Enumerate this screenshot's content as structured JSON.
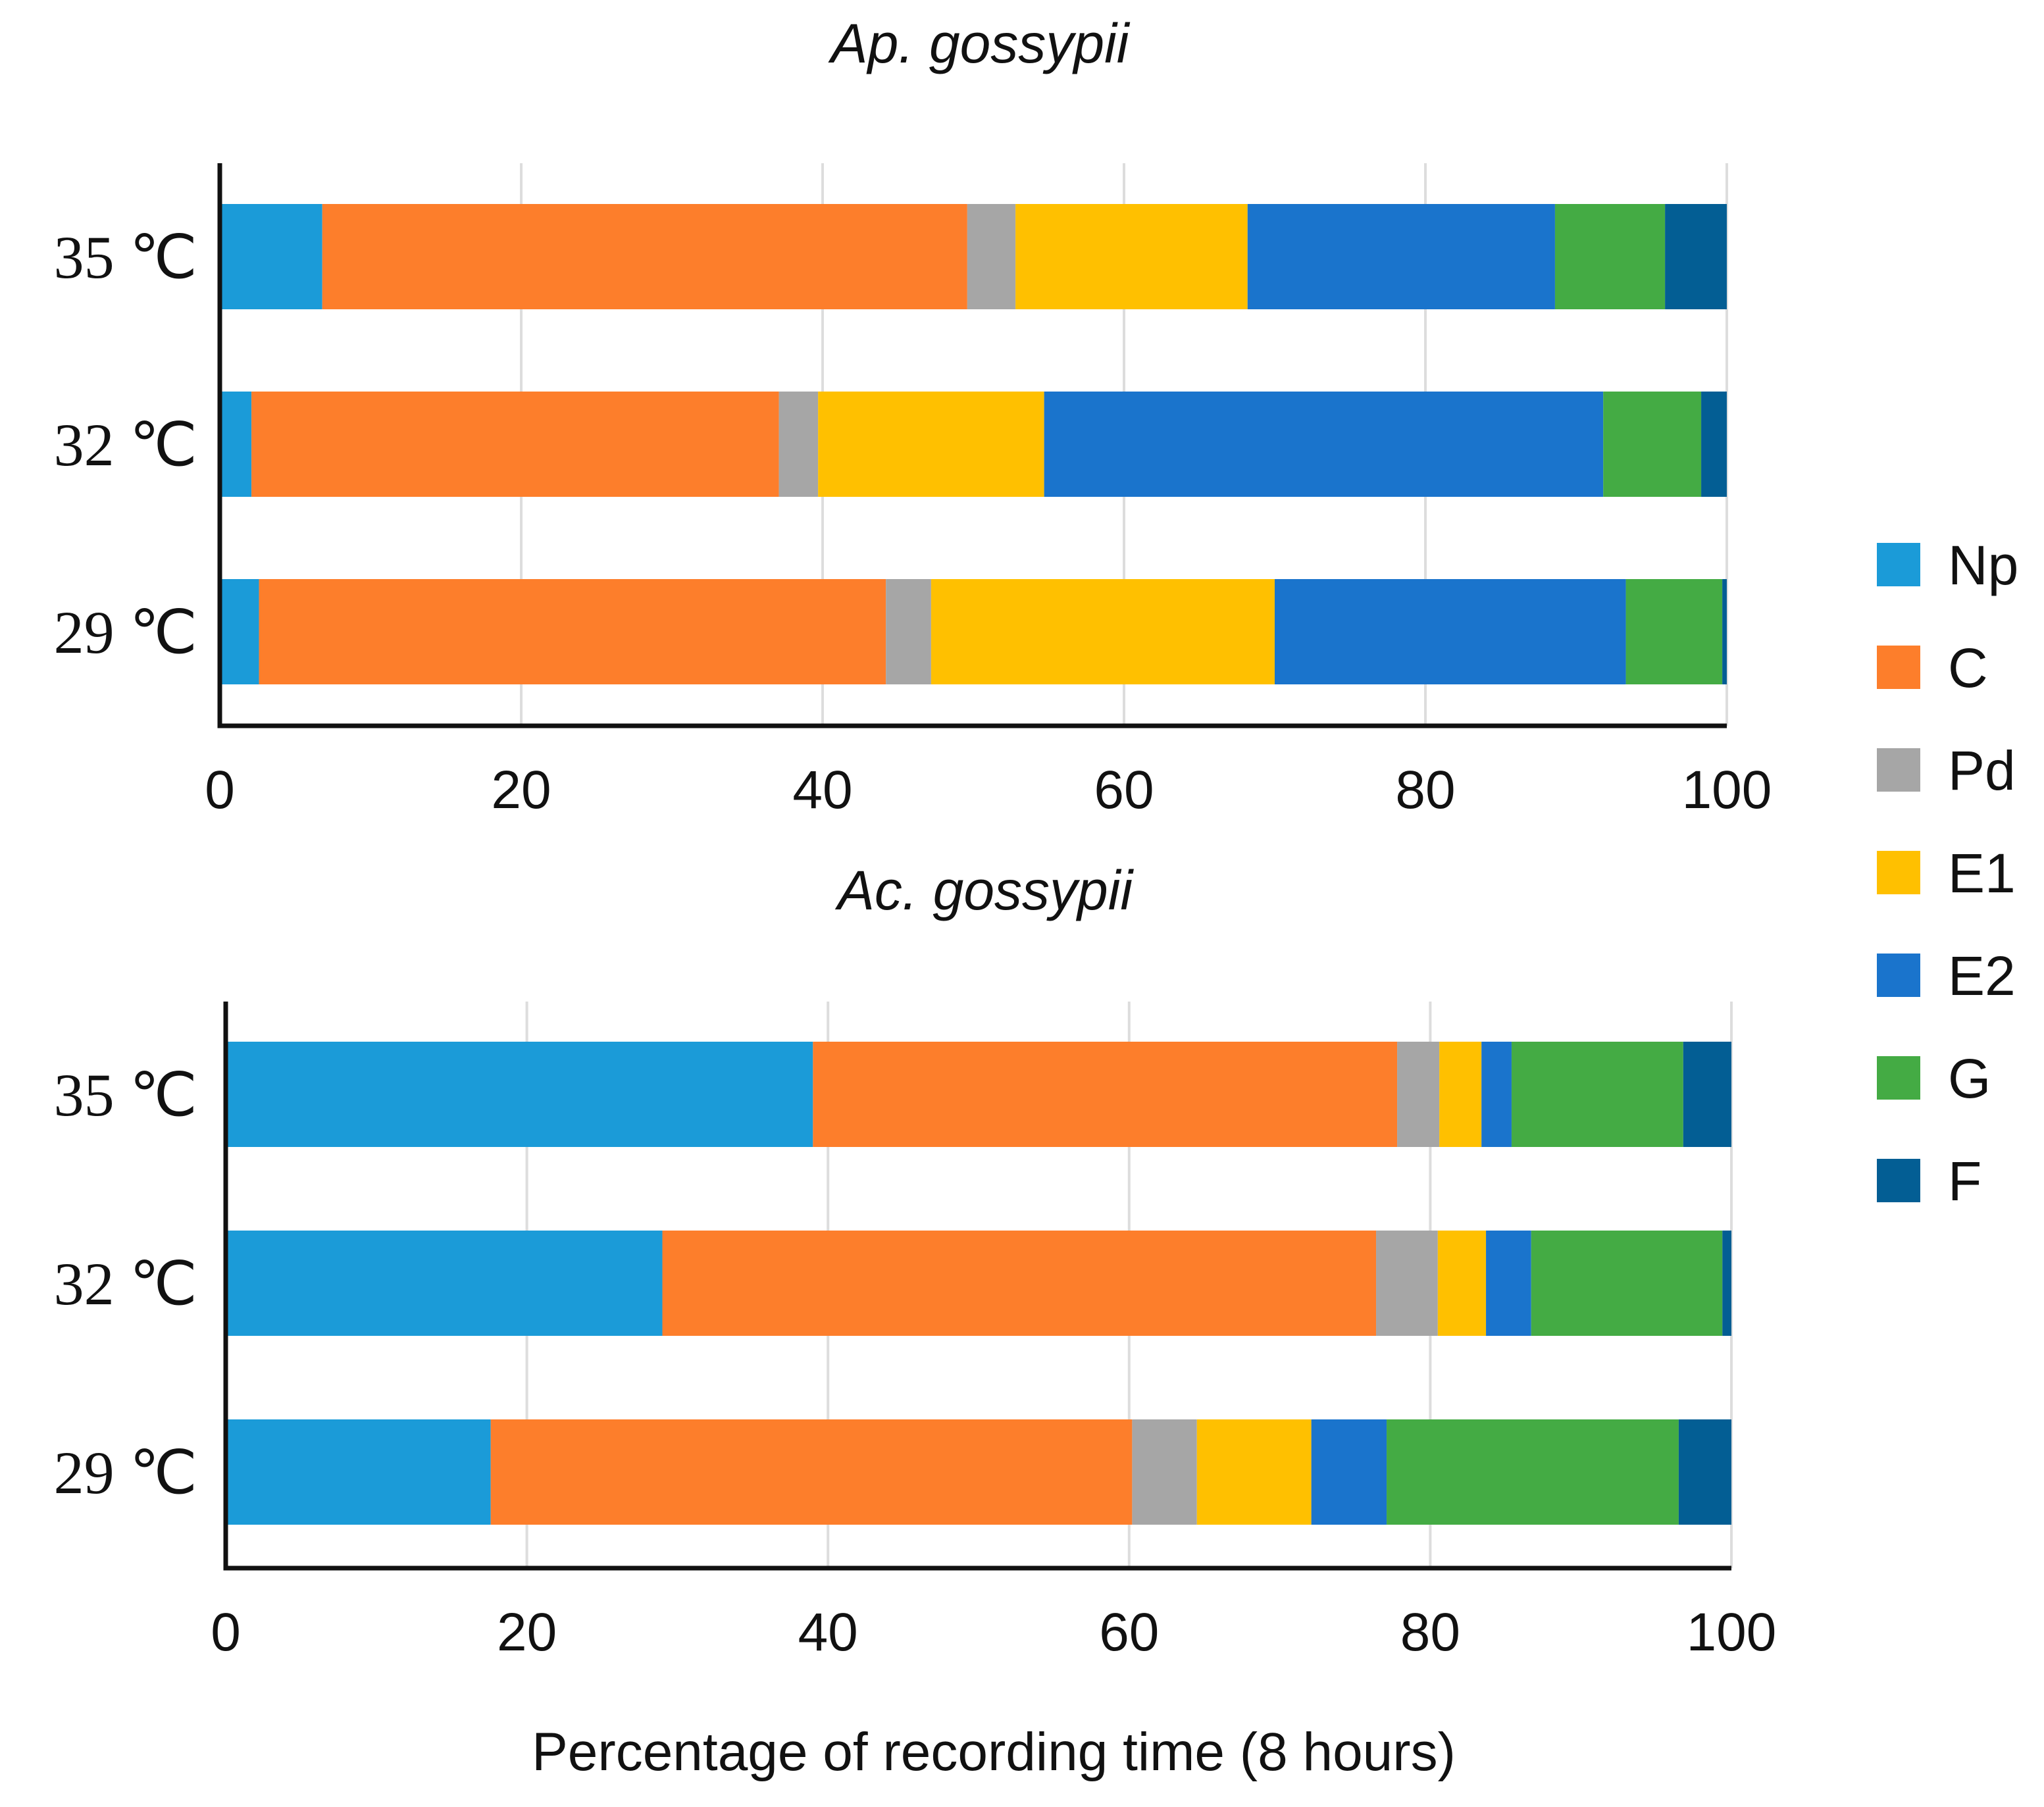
{
  "chart_data": {
    "type": "bar",
    "orientation": "horizontal",
    "stacked": true,
    "xlabel": "Percentage of recording time (8 hours)",
    "xlim": [
      0,
      100
    ],
    "xticks": [
      "0",
      "20",
      "40",
      "60",
      "80",
      "100"
    ],
    "grid": true,
    "legend_position": "right",
    "series_names": [
      "Np",
      "C",
      "Pd",
      "E1",
      "E2",
      "G",
      "F"
    ],
    "colors": {
      "Np": "#1b9bd8",
      "C": "#fd7e2b",
      "Pd": "#a6a6a6",
      "E1": "#ffc000",
      "E2": "#1a74cc",
      "G": "#44ab44",
      "F": "#035e94"
    },
    "panels": [
      {
        "title": "Ap. gossypii",
        "categories": [
          "35 ℃",
          "32 ℃",
          "29 ℃"
        ],
        "series": [
          {
            "name": "Np",
            "values": [
              6.8,
              2.1,
              2.6
            ]
          },
          {
            "name": "C",
            "values": [
              42.8,
              35.0,
              41.6
            ]
          },
          {
            "name": "Pd",
            "values": [
              3.2,
              2.6,
              3.0
            ]
          },
          {
            "name": "E1",
            "values": [
              15.4,
              15.0,
              22.8
            ]
          },
          {
            "name": "E2",
            "values": [
              20.4,
              37.1,
              23.3
            ]
          },
          {
            "name": "G",
            "values": [
              7.3,
              6.5,
              6.4
            ]
          },
          {
            "name": "F",
            "values": [
              4.1,
              1.7,
              0.3
            ]
          }
        ]
      },
      {
        "title": "Ac. gossypii",
        "categories": [
          "35 ℃",
          "32 ℃",
          "29 ℃"
        ],
        "series": [
          {
            "name": "Np",
            "values": [
              39.0,
              29.0,
              17.6
            ]
          },
          {
            "name": "C",
            "values": [
              38.8,
              47.4,
              42.6
            ]
          },
          {
            "name": "Pd",
            "values": [
              2.8,
              4.1,
              4.3
            ]
          },
          {
            "name": "E1",
            "values": [
              2.8,
              3.2,
              7.6
            ]
          },
          {
            "name": "E2",
            "values": [
              2.0,
              3.0,
              5.0
            ]
          },
          {
            "name": "G",
            "values": [
              11.4,
              12.7,
              19.4
            ]
          },
          {
            "name": "F",
            "values": [
              3.2,
              0.6,
              3.5
            ]
          }
        ]
      }
    ]
  }
}
